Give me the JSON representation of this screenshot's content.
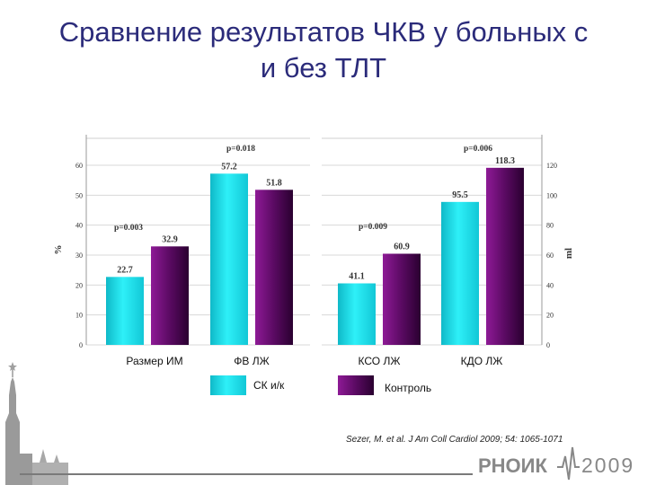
{
  "title_line1": "Сравнение результатов ЧКВ у больных с",
  "title_line2": "и без ТЛТ",
  "citation": "Sezer, M. et al. J Am Coll Cardiol 2009; 54: 1065-1071",
  "logo": {
    "word": "РНОИК",
    "year": "2009"
  },
  "colors": {
    "series1": "#19d8e6",
    "series2": "#5a0a62",
    "grid": "#d8d8d8",
    "title": "#2b2b7a"
  },
  "chart_data": [
    {
      "type": "bar",
      "ylabel": "%",
      "ylim": [
        0,
        60
      ],
      "yticks": [
        0,
        10,
        20,
        30,
        40,
        50,
        60
      ],
      "categories": [
        "Размер ИМ",
        "ФВ ЛЖ"
      ],
      "series": [
        {
          "name": "СК и/к",
          "values": [
            22.7,
            57.2
          ],
          "labels": [
            "22.7",
            "57.2"
          ]
        },
        {
          "name": "Контроль",
          "values": [
            32.9,
            51.8
          ],
          "labels": [
            "32.9",
            "51.8"
          ]
        }
      ],
      "annotations": [
        "p=0.003",
        "p=0.018"
      ]
    },
    {
      "type": "bar",
      "ylabel": "ml",
      "ylim": [
        0,
        120
      ],
      "yticks": [
        0,
        20,
        40,
        60,
        80,
        100,
        120
      ],
      "categories": [
        "КСО ЛЖ",
        "КДО ЛЖ"
      ],
      "series": [
        {
          "name": "СК и/к",
          "values": [
            41.1,
            95.5
          ],
          "labels": [
            "41.1",
            "95.5"
          ]
        },
        {
          "name": "Контроль",
          "values": [
            60.9,
            118.3
          ],
          "labels": [
            "60.9",
            "118.3"
          ]
        }
      ],
      "annotations": [
        "p=0.009",
        "p=0.006"
      ]
    }
  ],
  "legend": [
    "СК и/к",
    "Контроль"
  ]
}
